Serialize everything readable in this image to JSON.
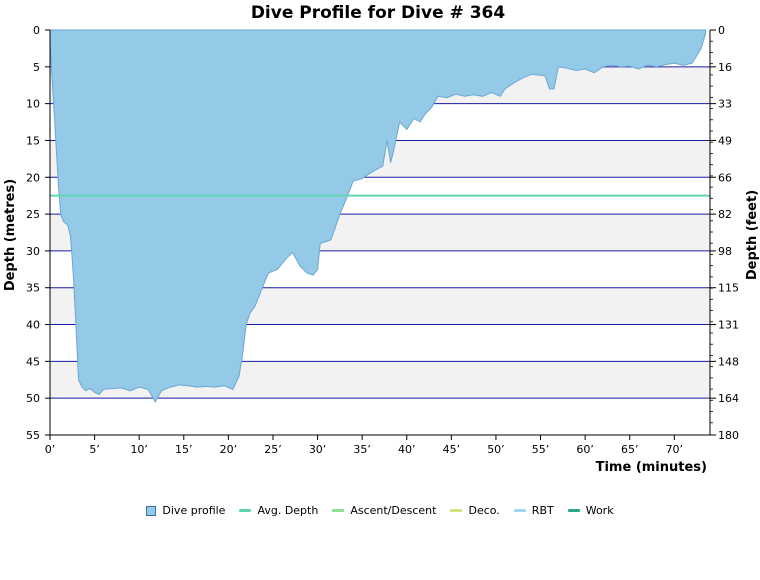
{
  "chart_data": {
    "type": "area",
    "title": "Dive Profile for Dive # 364",
    "xlabel": "Time (minutes)",
    "ylabel_left": "Depth (metres)",
    "ylabel_right": "Depth (feet)",
    "x_ticks": [
      "0’",
      "5’",
      "10’",
      "15’",
      "20’",
      "25’",
      "30’",
      "35’",
      "40’",
      "45’",
      "50’",
      "55’",
      "60’",
      "65’",
      "70’"
    ],
    "y_left_ticks": [
      "0",
      "5",
      "10",
      "15",
      "20",
      "25",
      "30",
      "35",
      "40",
      "45",
      "50",
      "55"
    ],
    "y_right_ticks": [
      "0",
      "16",
      "33",
      "49",
      "66",
      "82",
      "98",
      "115",
      "131",
      "148",
      "164",
      "180"
    ],
    "xlim": [
      0,
      74
    ],
    "ylim": [
      0,
      55
    ],
    "y_inverted": true,
    "grid": true,
    "legend_position": "bottom",
    "avg_depth": 22.5,
    "colors": {
      "profile_fill": "#94cae8",
      "profile_stroke": "#6aa6d4",
      "avg_depth": "#5fd6b0",
      "ascent": "#8fe08f",
      "deco": "#d6e27a",
      "rbt": "#9bd8ee",
      "work": "#2aa889",
      "grid_line": "#1a1aa8",
      "band": "#f2f2f2"
    },
    "series": [
      {
        "name": "Dive profile",
        "points": [
          [
            0,
            1.5
          ],
          [
            0.2,
            6
          ],
          [
            0.5,
            12
          ],
          [
            0.8,
            18
          ],
          [
            1.0,
            22
          ],
          [
            1.2,
            25
          ],
          [
            1.5,
            26
          ],
          [
            2.0,
            26.5
          ],
          [
            2.3,
            28
          ],
          [
            2.6,
            33
          ],
          [
            2.9,
            40
          ],
          [
            3.2,
            47.5
          ],
          [
            3.6,
            48.5
          ],
          [
            4.0,
            49
          ],
          [
            4.5,
            48.7
          ],
          [
            5.0,
            49.2
          ],
          [
            5.5,
            49.5
          ],
          [
            6.0,
            48.8
          ],
          [
            7.0,
            48.7
          ],
          [
            8.0,
            48.6
          ],
          [
            9.0,
            49
          ],
          [
            10.0,
            48.5
          ],
          [
            11.0,
            48.8
          ],
          [
            11.8,
            50.5
          ],
          [
            12.5,
            49
          ],
          [
            13.5,
            48.5
          ],
          [
            14.5,
            48.2
          ],
          [
            15.5,
            48.3
          ],
          [
            16.5,
            48.5
          ],
          [
            17.5,
            48.4
          ],
          [
            18.5,
            48.5
          ],
          [
            19.5,
            48.3
          ],
          [
            20.5,
            48.8
          ],
          [
            21.2,
            47
          ],
          [
            21.6,
            44
          ],
          [
            22.0,
            40
          ],
          [
            22.4,
            38.5
          ],
          [
            23.0,
            37.5
          ],
          [
            23.8,
            35
          ],
          [
            24.5,
            33
          ],
          [
            25.5,
            32.5
          ],
          [
            26.5,
            31
          ],
          [
            27.2,
            30.2
          ],
          [
            28.0,
            32
          ],
          [
            28.8,
            33
          ],
          [
            29.5,
            33.3
          ],
          [
            30.0,
            32.5
          ],
          [
            30.3,
            29
          ],
          [
            31.5,
            28.5
          ],
          [
            32.5,
            25
          ],
          [
            33.2,
            23
          ],
          [
            34.0,
            20.5
          ],
          [
            35.0,
            20.2
          ],
          [
            35.8,
            19.5
          ],
          [
            36.5,
            19
          ],
          [
            37.3,
            18.5
          ],
          [
            37.8,
            15
          ],
          [
            38.2,
            18
          ],
          [
            38.6,
            16
          ],
          [
            39.2,
            12.5
          ],
          [
            40.0,
            13.5
          ],
          [
            40.8,
            12
          ],
          [
            41.5,
            12.5
          ],
          [
            42.0,
            11.5
          ],
          [
            42.8,
            10.5
          ],
          [
            43.5,
            9
          ],
          [
            44.5,
            9.2
          ],
          [
            45.5,
            8.7
          ],
          [
            46.5,
            9
          ],
          [
            47.5,
            8.8
          ],
          [
            48.5,
            9
          ],
          [
            49.5,
            8.5
          ],
          [
            50.5,
            9
          ],
          [
            51.0,
            8
          ],
          [
            52.0,
            7.2
          ],
          [
            53.0,
            6.5
          ],
          [
            54.0,
            6
          ],
          [
            55.5,
            6.2
          ],
          [
            56.0,
            8
          ],
          [
            56.5,
            8
          ],
          [
            57.0,
            5
          ],
          [
            58.0,
            5.2
          ],
          [
            59.0,
            5.5
          ],
          [
            60.0,
            5.3
          ],
          [
            61.0,
            5.8
          ],
          [
            62.0,
            5
          ],
          [
            63.0,
            4.8
          ],
          [
            64.0,
            5
          ],
          [
            65.0,
            4.9
          ],
          [
            66.0,
            5.3
          ],
          [
            67.0,
            4.8
          ],
          [
            68.0,
            5
          ],
          [
            69.0,
            4.7
          ],
          [
            70.0,
            4.5
          ],
          [
            71.0,
            4.8
          ],
          [
            72.0,
            4.5
          ],
          [
            73.0,
            2.5
          ],
          [
            73.5,
            0.5
          ]
        ]
      }
    ]
  },
  "legend": [
    {
      "label": "Dive profile",
      "kind": "box",
      "color": "#94cae8"
    },
    {
      "label": "Avg. Depth",
      "kind": "line",
      "color": "#5fd6b0"
    },
    {
      "label": "Ascent/Descent",
      "kind": "line",
      "color": "#8fe08f"
    },
    {
      "label": "Deco.",
      "kind": "line",
      "color": "#d6e27a"
    },
    {
      "label": "RBT",
      "kind": "line",
      "color": "#9bd8ee"
    },
    {
      "label": "Work",
      "kind": "line",
      "color": "#2aa889"
    }
  ]
}
